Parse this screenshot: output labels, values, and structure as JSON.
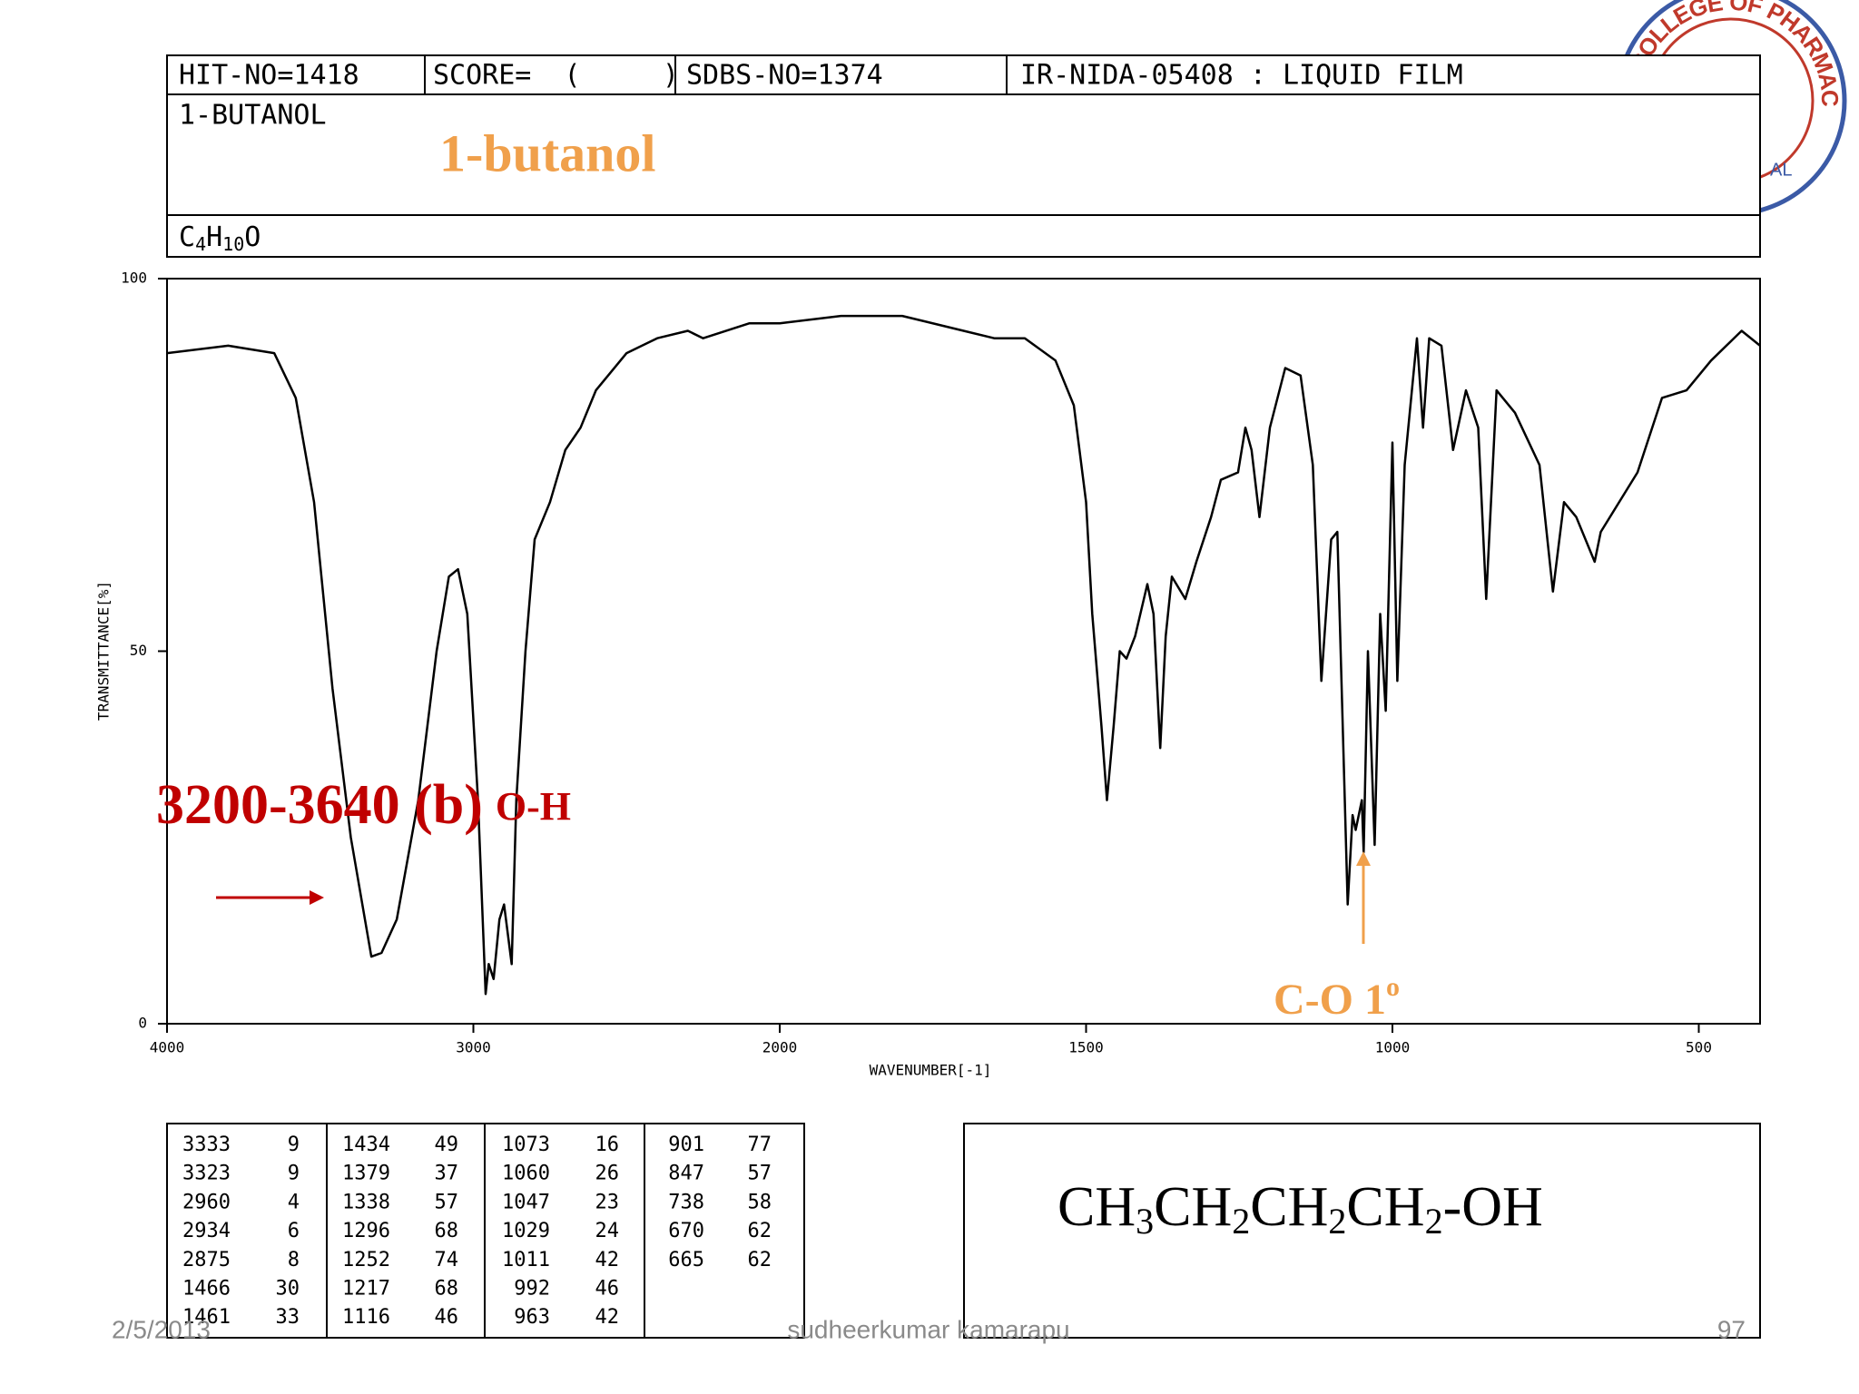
{
  "header": {
    "hit_no": "HIT-NO=1418",
    "score": "SCORE=  (     )",
    "sdbs_no": "SDBS-NO=1374",
    "method": "IR-NIDA-05408 : LIQUID FILM",
    "compound": "1-BUTANOL",
    "formula": [
      "C",
      "4",
      "H",
      "10",
      "O"
    ]
  },
  "title_annotation": "1-butanol",
  "chart_data": {
    "type": "line",
    "x": [
      4000,
      3800,
      3650,
      3580,
      3520,
      3460,
      3400,
      3333,
      3300,
      3250,
      3180,
      3120,
      3080,
      3050,
      3020,
      2985,
      2960,
      2950,
      2934,
      2915,
      2900,
      2875,
      2860,
      2830,
      2800,
      2750,
      2700,
      2650,
      2600,
      2500,
      2400,
      2300,
      2250,
      2100,
      2000,
      1900,
      1800,
      1700,
      1650,
      1600,
      1550,
      1520,
      1500,
      1490,
      1475,
      1466,
      1455,
      1445,
      1434,
      1420,
      1400,
      1390,
      1379,
      1370,
      1360,
      1338,
      1320,
      1296,
      1280,
      1252,
      1240,
      1230,
      1217,
      1200,
      1175,
      1150,
      1130,
      1116,
      1100,
      1090,
      1073,
      1065,
      1060,
      1050,
      1047,
      1040,
      1029,
      1020,
      1011,
      1000,
      992,
      980,
      960,
      950,
      940,
      920,
      901,
      880,
      860,
      847,
      830,
      800,
      760,
      738,
      720,
      700,
      670,
      660,
      600,
      560,
      520,
      480,
      430,
      400
    ],
    "values": [
      90,
      91,
      90,
      84,
      70,
      45,
      25,
      9,
      9.5,
      14,
      30,
      50,
      60,
      61,
      55,
      30,
      4,
      8,
      6,
      14,
      16,
      8,
      30,
      50,
      65,
      70,
      77,
      80,
      85,
      90,
      92,
      93,
      92,
      94,
      94,
      95,
      95,
      93,
      92,
      92,
      89,
      83,
      70,
      55,
      40,
      30,
      40,
      50,
      49,
      52,
      59,
      55,
      37,
      52,
      60,
      57,
      62,
      68,
      73,
      74,
      80,
      77,
      68,
      80,
      88,
      87,
      75,
      46,
      65,
      66,
      16,
      28,
      26,
      30,
      23,
      50,
      24,
      55,
      42,
      78,
      46,
      75,
      92,
      80,
      92,
      91,
      77,
      85,
      80,
      57,
      85,
      82,
      75,
      58,
      70,
      68,
      62,
      66,
      74,
      84,
      85,
      89,
      93,
      91
    ],
    "color": "#000000",
    "xlim": [
      4000,
      400
    ],
    "xticks": [
      4000,
      3000,
      2000,
      1500,
      1000,
      500
    ],
    "xscale": "tick-spaced",
    "ylim": [
      0,
      100
    ],
    "yticks": [
      0,
      50,
      100
    ],
    "xlabel": "WAVENUMBER[-1]",
    "ylabel": "TRANSMITTANCE[%]"
  },
  "annotations": {
    "oh_range": "3200-3640 (b)",
    "oh_label": "O-H",
    "co_label": "C-O 1",
    "co_sup": "o"
  },
  "peak_table": {
    "columns": [
      [
        [
          3333,
          9
        ],
        [
          3323,
          9
        ],
        [
          2960,
          4
        ],
        [
          2934,
          6
        ],
        [
          2875,
          8
        ],
        [
          1466,
          30
        ],
        [
          1461,
          33
        ]
      ],
      [
        [
          1434,
          49
        ],
        [
          1379,
          37
        ],
        [
          1338,
          57
        ],
        [
          1296,
          68
        ],
        [
          1252,
          74
        ],
        [
          1217,
          68
        ],
        [
          1116,
          46
        ]
      ],
      [
        [
          1073,
          16
        ],
        [
          1060,
          26
        ],
        [
          1047,
          23
        ],
        [
          1029,
          24
        ],
        [
          1011,
          42
        ],
        [
          992,
          46
        ],
        [
          963,
          42
        ]
      ],
      [
        [
          901,
          77
        ],
        [
          847,
          57
        ],
        [
          738,
          58
        ],
        [
          670,
          62
        ],
        [
          665,
          62
        ]
      ]
    ]
  },
  "structure": [
    "CH",
    "3",
    "CH",
    "2",
    "CH",
    "2",
    "CH",
    "2",
    "-OH"
  ],
  "logo": {
    "text": "NI COLLEGE OF PHARMACY",
    "bottom": "AL"
  },
  "footer": {
    "date": "2/5/2013",
    "author": "sudheerkumar kamarapu",
    "page": "97"
  }
}
